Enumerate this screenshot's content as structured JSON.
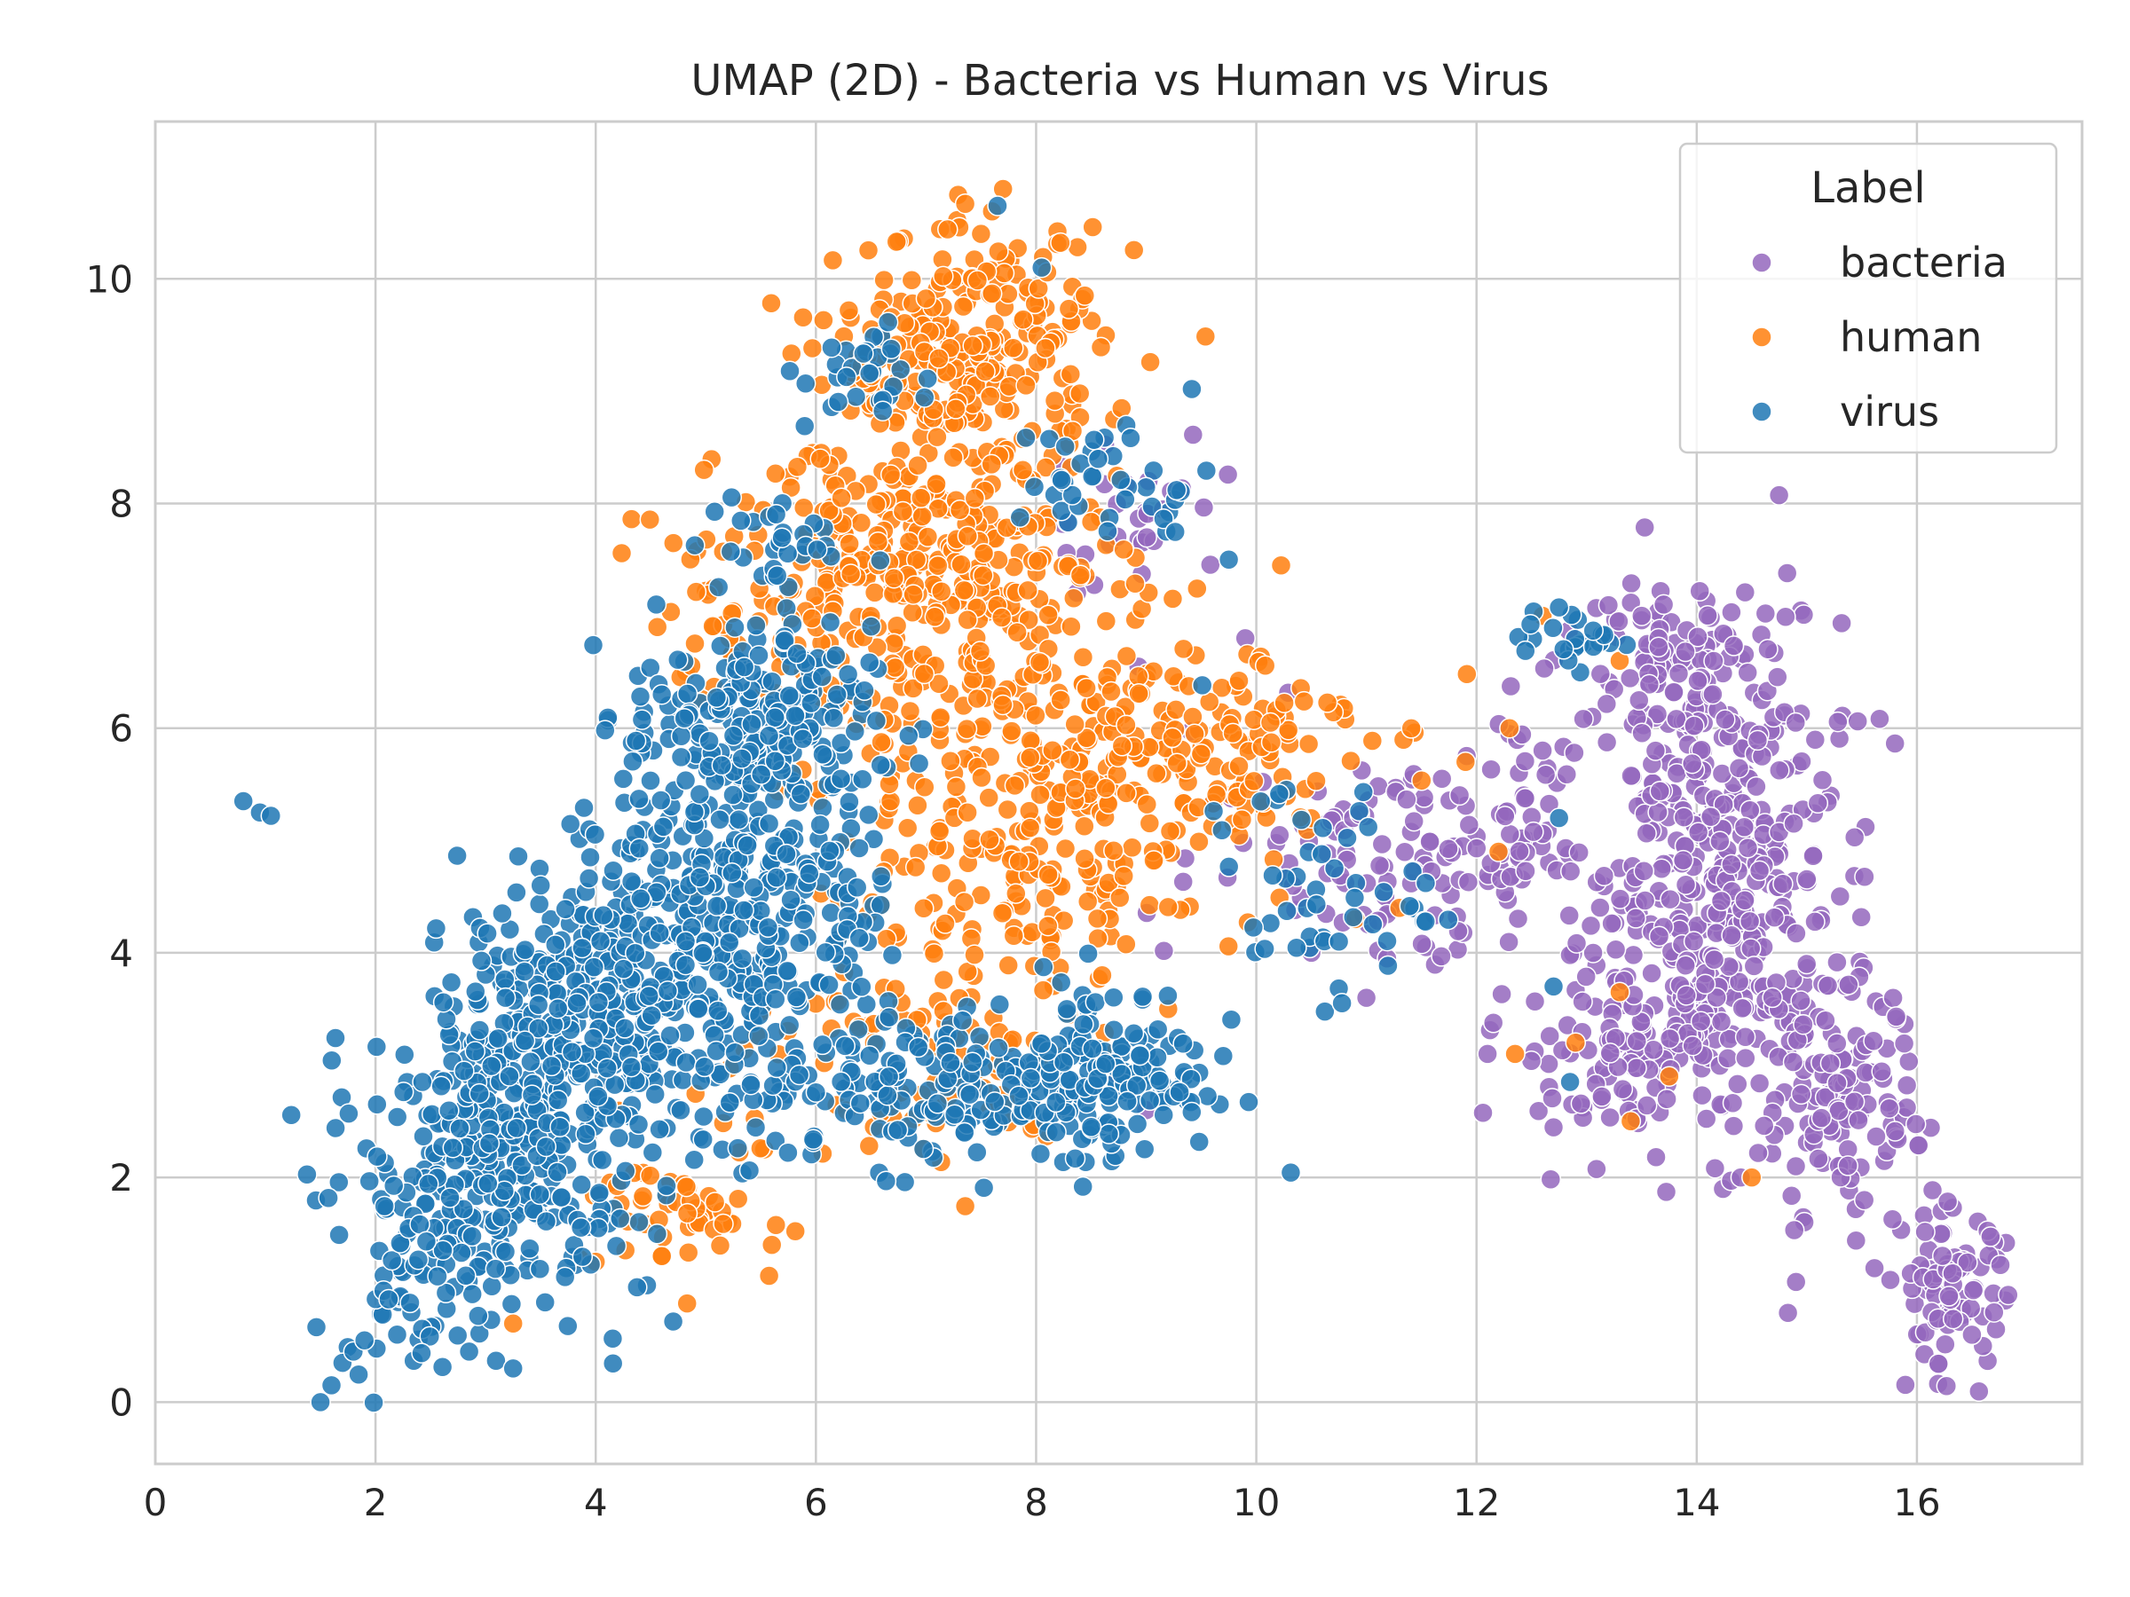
{
  "chart_data": {
    "type": "scatter",
    "title": "UMAP (2D) - Bacteria vs Human vs Virus",
    "xlabel": "",
    "ylabel": "",
    "xlim": [
      0,
      17.5
    ],
    "ylim": [
      -0.55,
      11.4
    ],
    "xticks": [
      0,
      2,
      4,
      6,
      8,
      10,
      12,
      14,
      16
    ],
    "yticks": [
      0,
      2,
      4,
      6,
      8,
      10
    ],
    "grid": true,
    "legend": {
      "title": "Label",
      "placement": "top-right"
    },
    "series": [
      {
        "name": "bacteria",
        "color": "#9467bd",
        "clusters": [
          {
            "center": [
              14.2,
              4.8
            ],
            "spread": [
              0.55,
              1.1
            ],
            "count": 420
          },
          {
            "center": [
              13.4,
              3.2
            ],
            "spread": [
              0.6,
              0.5
            ],
            "count": 120
          },
          {
            "center": [
              15.3,
              2.6
            ],
            "spread": [
              0.4,
              0.6
            ],
            "count": 130
          },
          {
            "center": [
              16.3,
              1.0
            ],
            "spread": [
              0.25,
              0.35
            ],
            "count": 80
          },
          {
            "center": [
              13.8,
              6.6
            ],
            "spread": [
              0.4,
              0.35
            ],
            "count": 60
          },
          {
            "center": [
              11.3,
              4.9
            ],
            "spread": [
              0.9,
              0.5
            ],
            "count": 110
          },
          {
            "center": [
              8.9,
              7.9
            ],
            "spread": [
              0.4,
              0.4
            ],
            "count": 30
          },
          {
            "center": [
              12.5,
              5.3
            ],
            "spread": [
              0.35,
              0.45
            ],
            "count": 40
          }
        ],
        "extra": [
          [
            16.6,
            0.5
          ],
          [
            16.7,
            0.8
          ],
          [
            16.5,
            0.6
          ],
          [
            14.4,
            2.0
          ],
          [
            12.1,
            3.1
          ],
          [
            10.5,
            4.0
          ],
          [
            11.0,
            3.6
          ],
          [
            9.9,
            6.8
          ],
          [
            13.7,
            7.1
          ],
          [
            13.5,
            7.0
          ],
          [
            8.7,
            2.9
          ],
          [
            9.0,
            2.6
          ],
          [
            12.6,
            5.8
          ],
          [
            14.9,
            2.1
          ]
        ]
      },
      {
        "name": "human",
        "color": "#ff7f0e",
        "clusters": [
          {
            "center": [
              7.4,
              9.3
            ],
            "spread": [
              0.6,
              0.55
            ],
            "count": 260
          },
          {
            "center": [
              7.0,
              7.4
            ],
            "spread": [
              0.9,
              0.6
            ],
            "count": 330
          },
          {
            "center": [
              8.0,
              5.3
            ],
            "spread": [
              1.0,
              0.8
            ],
            "count": 320
          },
          {
            "center": [
              9.6,
              6.0
            ],
            "spread": [
              0.7,
              0.4
            ],
            "count": 110
          },
          {
            "center": [
              6.8,
              3.0
            ],
            "spread": [
              0.9,
              0.5
            ],
            "count": 90
          },
          {
            "center": [
              5.0,
              1.7
            ],
            "spread": [
              0.5,
              0.3
            ],
            "count": 50
          },
          {
            "center": [
              5.2,
              6.9
            ],
            "spread": [
              0.3,
              0.3
            ],
            "count": 30
          }
        ],
        "extra": [
          [
            7.7,
            10.8
          ],
          [
            7.6,
            10.6
          ],
          [
            7.5,
            10.4
          ],
          [
            4.6,
            1.3
          ],
          [
            5.6,
            1.4
          ],
          [
            4.0,
            1.25
          ],
          [
            3.25,
            0.7
          ],
          [
            13.3,
            3.65
          ],
          [
            12.9,
            3.2
          ],
          [
            13.75,
            2.9
          ],
          [
            13.4,
            2.5
          ],
          [
            14.5,
            2.0
          ],
          [
            12.35,
            3.1
          ],
          [
            12.2,
            4.9
          ],
          [
            11.9,
            5.7
          ],
          [
            12.3,
            6.0
          ],
          [
            10.9,
            4.3
          ],
          [
            11.3,
            4.4
          ],
          [
            12.6,
            7.0
          ],
          [
            13.3,
            6.6
          ],
          [
            9.2,
            3.5
          ],
          [
            8.6,
            3.8
          ]
        ]
      },
      {
        "name": "virus",
        "color": "#1f77b4",
        "clusters": [
          {
            "center": [
              3.2,
              2.3
            ],
            "spread": [
              0.65,
              0.7
            ],
            "count": 380
          },
          {
            "center": [
              4.0,
              3.6
            ],
            "spread": [
              0.6,
              0.55
            ],
            "count": 260
          },
          {
            "center": [
              5.4,
              4.6
            ],
            "spread": [
              0.65,
              0.8
            ],
            "count": 360
          },
          {
            "center": [
              5.4,
              6.1
            ],
            "spread": [
              0.55,
              0.4
            ],
            "count": 160
          },
          {
            "center": [
              7.2,
              2.8
            ],
            "spread": [
              1.1,
              0.35
            ],
            "count": 220
          },
          {
            "center": [
              8.7,
              3.0
            ],
            "spread": [
              0.45,
              0.4
            ],
            "count": 110
          },
          {
            "center": [
              2.3,
              1.2
            ],
            "spread": [
              0.3,
              0.4
            ],
            "count": 60
          },
          {
            "center": [
              8.7,
              8.2
            ],
            "spread": [
              0.45,
              0.3
            ],
            "count": 40
          },
          {
            "center": [
              6.5,
              9.1
            ],
            "spread": [
              0.3,
              0.25
            ],
            "count": 30
          },
          {
            "center": [
              10.5,
              4.6
            ],
            "spread": [
              0.5,
              0.5
            ],
            "count": 50
          },
          {
            "center": [
              12.9,
              6.8
            ],
            "spread": [
              0.25,
              0.12
            ],
            "count": 25
          },
          {
            "center": [
              5.6,
              7.6
            ],
            "spread": [
              0.35,
              0.25
            ],
            "count": 30
          }
        ],
        "extra": [
          [
            0.8,
            5.35
          ],
          [
            0.95,
            5.25
          ],
          [
            1.05,
            5.22
          ],
          [
            1.5,
            0.0
          ],
          [
            1.6,
            0.15
          ],
          [
            1.7,
            0.35
          ],
          [
            1.8,
            0.45
          ],
          [
            1.9,
            0.55
          ],
          [
            3.25,
            0.3
          ],
          [
            2.85,
            0.45
          ],
          [
            7.65,
            10.65
          ],
          [
            8.05,
            10.1
          ],
          [
            4.55,
            7.1
          ],
          [
            4.6,
            6.3
          ],
          [
            3.95,
            4.85
          ],
          [
            3.5,
            4.6
          ],
          [
            12.7,
            3.7
          ],
          [
            12.85,
            2.85
          ],
          [
            12.75,
            5.2
          ],
          [
            9.75,
            7.5
          ],
          [
            10.75,
            4.1
          ],
          [
            8.5,
            2.45
          ],
          [
            7.35,
            2.4
          ]
        ]
      }
    ]
  }
}
